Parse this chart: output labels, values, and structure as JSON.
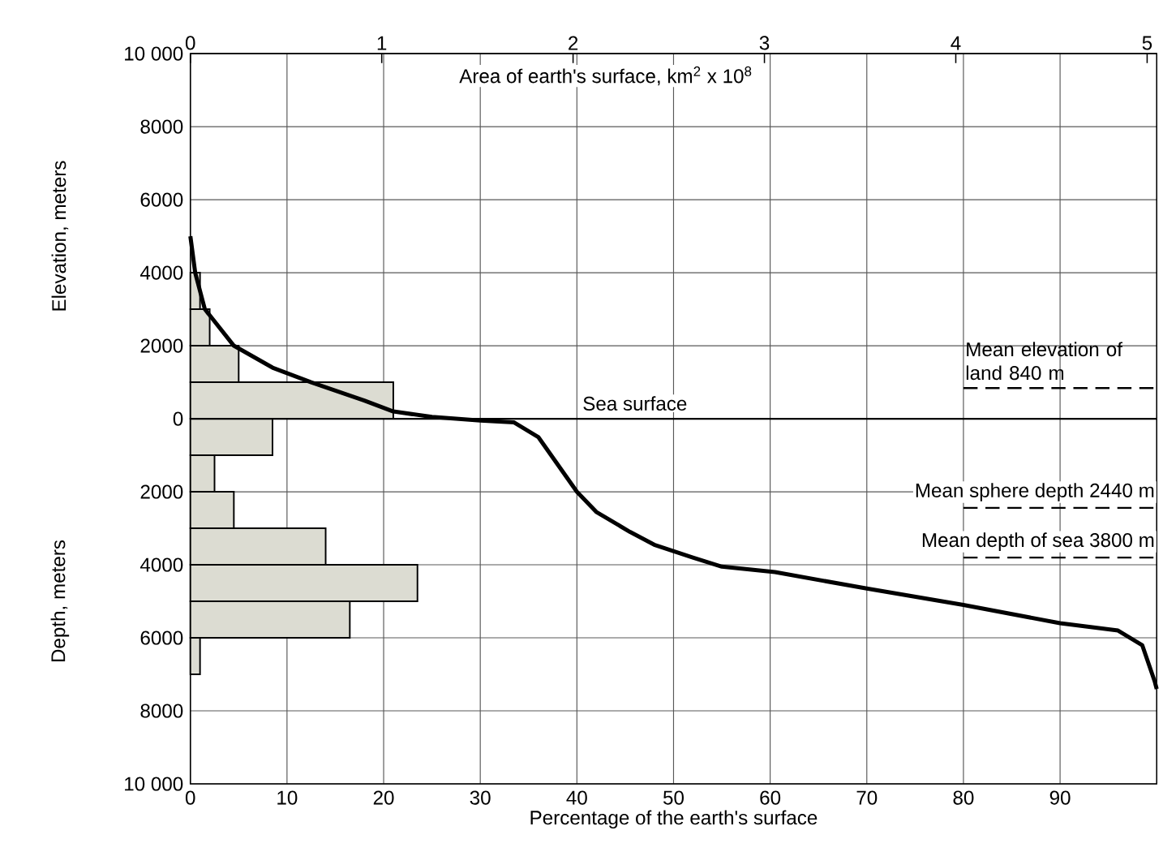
{
  "chart_data": {
    "type": "line",
    "orientation": "horizontal",
    "xlabel": "Percentage of the earth's surface",
    "ylabel": "Elevation, meters",
    "x2label": "Area of earth's surface, km$^{2}$ x 10$^{8}$",
    "annotations": [
      "Depth, meters"
    ],
    "xlim": [
      0,
      100
    ],
    "xticks": [
      0,
      10,
      20,
      30,
      40,
      50,
      60,
      70,
      80,
      90
    ],
    "x2lim": [
      0,
      5.05
    ],
    "x2ticks": [
      0,
      1,
      2,
      3,
      4,
      5
    ],
    "ylim": [
      -10000,
      10000
    ],
    "yticks": [
      {
        "value": -10000,
        "label": "10 000"
      },
      {
        "value": -8000,
        "label": "8000"
      },
      {
        "value": -6000,
        "label": "6000"
      },
      {
        "value": -4000,
        "label": "4000"
      },
      {
        "value": -2000,
        "label": "2000"
      },
      0,
      2000,
      4000,
      6000,
      8000,
      {
        "value": 10000,
        "label": "10 000"
      }
    ],
    "grid": true,
    "series": [
      {
        "type": "histogram",
        "color": "#dcdcd2",
        "bins": [
          -7000,
          -6000,
          -5000,
          -4000,
          -3000,
          -2000,
          -1000,
          0,
          1000,
          2000,
          3000,
          4000
        ],
        "values": [
          1,
          16.5,
          23.5,
          14,
          4.5,
          2.5,
          8.5,
          21,
          5,
          2,
          1
        ]
      },
      {
        "color": "#000000",
        "values": [
          0,
          0.5,
          1.5,
          4.5,
          8.5,
          12.5,
          18,
          21,
          25,
          30,
          33.5,
          36,
          40,
          42,
          45.5,
          48,
          52,
          55,
          60.5,
          70,
          80,
          90,
          96,
          98.5,
          99.8,
          100
        ],
        "x": [
          5000,
          4000,
          3000,
          2000,
          1400,
          1000,
          500,
          200,
          50,
          -50,
          -100,
          -500,
          -2000,
          -2550,
          -3100,
          -3450,
          -3800,
          -4050,
          -4200,
          -4650,
          -5100,
          -5600,
          -5800,
          -6200,
          -7200,
          -7400
        ]
      }
    ],
    "ref_lines": [
      {
        "axis": "y",
        "value": 0,
        "label": "Sea surface",
        "color": "#000000",
        "line_style": "solid"
      },
      {
        "axis": "y",
        "value": 840,
        "label": "Mean elevation of land 840 m",
        "color": "#000000",
        "line_style": "dashed"
      },
      {
        "axis": "y",
        "value": -2440,
        "label": "Mean sphere depth 2440 m",
        "color": "#000000",
        "line_style": "dashed"
      },
      {
        "axis": "y",
        "value": -3800,
        "label": "Mean depth of sea 3800 m",
        "color": "#000000",
        "line_style": "dashed"
      }
    ]
  }
}
